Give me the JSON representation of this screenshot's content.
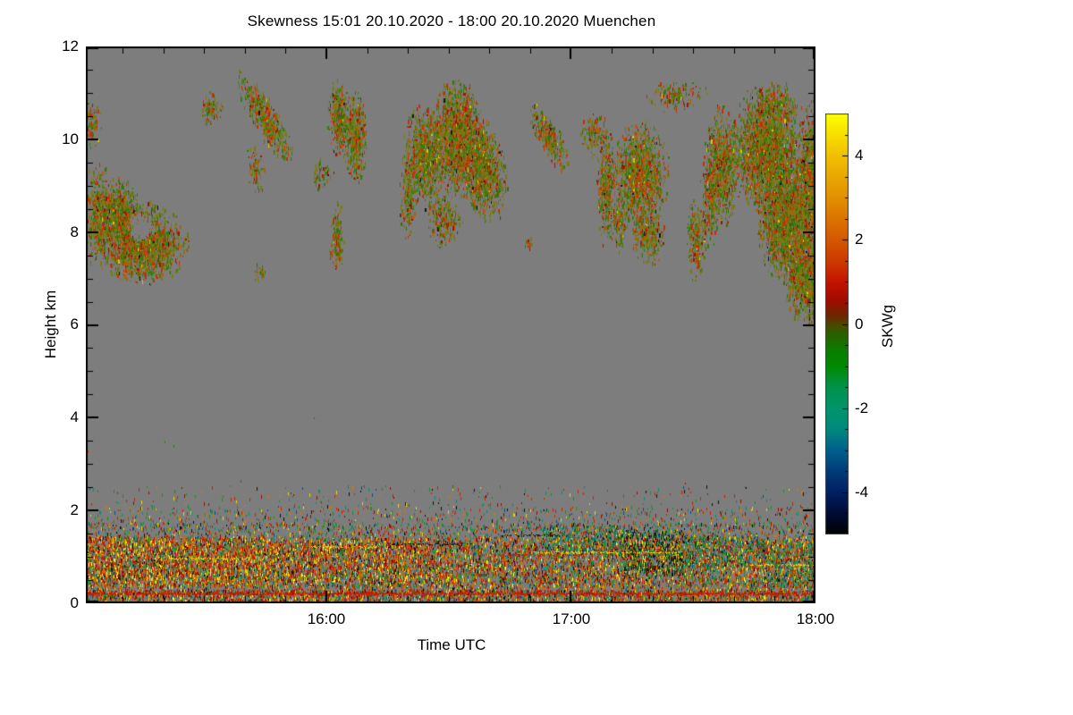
{
  "title": "Skewness   15:01 20.10.2020 - 18:00 20.10.2020 Muenchen",
  "chart_data": {
    "type": "heatmap",
    "title": "Skewness   15:01 20.10.2020 - 18:00 20.10.2020 Muenchen",
    "variable": "Skewness",
    "station": "Muenchen",
    "time_start": "15:01 20.10.2020",
    "time_end": "18:00 20.10.2020",
    "xlabel": "Time UTC",
    "ylabel": "Height km",
    "x_total_minutes": 179,
    "x_tick_labels": [
      "16:00",
      "17:00",
      "18:00"
    ],
    "x_major_minutes": [
      59,
      119,
      179
    ],
    "x_minor_step_min": 10,
    "y_max_km": 12,
    "y_tick_labels": [
      "12",
      "10",
      "8",
      "6",
      "4",
      "2",
      "0"
    ],
    "y_major_km": [
      0,
      2,
      4,
      6,
      8,
      10,
      12
    ],
    "y_minor_step_km": 0.5,
    "background_no_data_color": "#7D7D7D",
    "frame_color": "#000000",
    "colorbar": {
      "label": "SKWg",
      "min": -5,
      "max": 5,
      "tick_labels": [
        "4",
        "2",
        "0",
        "-2",
        "-4"
      ],
      "tick_values": [
        4,
        2,
        0,
        -2,
        -4
      ],
      "minor_step": 0.5,
      "gradient_stops": [
        [
          0.0,
          "#FFFF00"
        ],
        [
          0.1,
          "#F0C000"
        ],
        [
          0.2,
          "#E39000"
        ],
        [
          0.3,
          "#D55800"
        ],
        [
          0.36,
          "#CC3300"
        ],
        [
          0.4,
          "#C41400"
        ],
        [
          0.44,
          "#A50A00"
        ],
        [
          0.48,
          "#6E2600"
        ],
        [
          0.5,
          "#4F4500"
        ],
        [
          0.52,
          "#2F5C00"
        ],
        [
          0.56,
          "#0C7C00"
        ],
        [
          0.6,
          "#008A00"
        ],
        [
          0.65,
          "#00924A"
        ],
        [
          0.7,
          "#00966B"
        ],
        [
          0.75,
          "#00897E"
        ],
        [
          0.8,
          "#00608C"
        ],
        [
          0.85,
          "#003C78"
        ],
        [
          0.9,
          "#001F62"
        ],
        [
          0.95,
          "#000C35"
        ],
        [
          1.0,
          "#000000"
        ]
      ]
    },
    "palettes": {
      "cloud": [
        [
          "#7A7A14",
          0.3
        ],
        [
          "#5F7A10",
          0.14
        ],
        [
          "#2E7D12",
          0.14
        ],
        [
          "#C03208",
          0.16
        ],
        [
          "#B55B0A",
          0.1
        ],
        [
          "#8C1E04",
          0.06
        ],
        [
          "#3E6B0A",
          0.08
        ],
        [
          "#D8C800",
          0.01
        ],
        [
          "#151515",
          0.01
        ]
      ],
      "bl_dense": [
        [
          "#C21E00",
          0.2
        ],
        [
          "#D96A00",
          0.16
        ],
        [
          "#E6C800",
          0.1
        ],
        [
          "#FFFF30",
          0.04
        ],
        [
          "#7E7A0E",
          0.08
        ],
        [
          "#1E8C28",
          0.14
        ],
        [
          "#0E8C6E",
          0.08
        ],
        [
          "#0F4E7E",
          0.04
        ],
        [
          "#101010",
          0.07
        ],
        [
          "#8C1200",
          0.09
        ]
      ],
      "bl_sparse": [
        [
          "#C22A00",
          0.2
        ],
        [
          "#D97800",
          0.12
        ],
        [
          "#E8D800",
          0.08
        ],
        [
          "#1E8C28",
          0.22
        ],
        [
          "#0E8C6E",
          0.12
        ],
        [
          "#0F4E7E",
          0.06
        ],
        [
          "#101010",
          0.09
        ],
        [
          "#8C1200",
          0.11
        ]
      ],
      "bl_green": [
        [
          "#1E8C28",
          0.28
        ],
        [
          "#0E8C6E",
          0.2
        ],
        [
          "#0F5E3E",
          0.12
        ],
        [
          "#C22A00",
          0.1
        ],
        [
          "#D97800",
          0.08
        ],
        [
          "#E8D800",
          0.06
        ],
        [
          "#101010",
          0.08
        ],
        [
          "#0F4E7E",
          0.08
        ]
      ],
      "bl_dark": [
        [
          "#0B2E10",
          0.2
        ],
        [
          "#101010",
          0.2
        ],
        [
          "#14502A",
          0.15
        ],
        [
          "#0E8C6E",
          0.1
        ],
        [
          "#1E8C28",
          0.12
        ],
        [
          "#C22A00",
          0.1
        ],
        [
          "#D97800",
          0.06
        ],
        [
          "#E8D800",
          0.07
        ]
      ],
      "bl_warm": [
        [
          "#C21E00",
          0.3
        ],
        [
          "#D96A00",
          0.25
        ],
        [
          "#E8D800",
          0.15
        ],
        [
          "#FFFF30",
          0.05
        ],
        [
          "#1E8C28",
          0.1
        ],
        [
          "#101010",
          0.05
        ],
        [
          "#8C1200",
          0.1
        ]
      ],
      "bl_red": [
        [
          "#C21E00",
          0.45
        ],
        [
          "#8C1200",
          0.15
        ],
        [
          "#D96A00",
          0.12
        ],
        [
          "#E8D800",
          0.06
        ],
        [
          "#1E8C28",
          0.08
        ],
        [
          "#101010",
          0.06
        ],
        [
          "#0E8C6E",
          0.04
        ],
        [
          "#7E7A0E",
          0.04
        ]
      ]
    },
    "clouds": [
      {
        "t": 1.5,
        "h": 10.3,
        "rt": 2.5,
        "rh": 0.5,
        "d": 0.22
      },
      {
        "t": 3,
        "h": 8.3,
        "rt": 3.5,
        "rh": 1.05,
        "d": 0.4
      },
      {
        "t": 14,
        "h": 7.7,
        "rt": 10,
        "rh": 0.8,
        "d": 0.75
      },
      {
        "t": 8,
        "h": 8.35,
        "rt": 5,
        "rh": 0.7,
        "d": 0.6
      },
      {
        "t": 13.5,
        "h": 8.05,
        "rt": 3,
        "rh": 0.28,
        "d": 1.3,
        "erase": true
      },
      {
        "t": 30.5,
        "h": 10.6,
        "rt": 2.8,
        "rh": 0.35,
        "d": 0.28
      },
      {
        "t": 44,
        "h": 10.4,
        "rt": 6.5,
        "rh": 0.5,
        "d": 0.5,
        "s": -0.12
      },
      {
        "t": 41.5,
        "h": 9.3,
        "rt": 2,
        "rh": 0.5,
        "d": 0.25,
        "s": -0.1
      },
      {
        "t": 42.5,
        "h": 7.05,
        "rt": 1.5,
        "rh": 0.2,
        "d": 0.35
      },
      {
        "t": 57.5,
        "h": 9.2,
        "rt": 3,
        "rh": 0.3,
        "d": 0.22
      },
      {
        "t": 62,
        "h": 10.4,
        "rt": 2.6,
        "rh": 0.8,
        "d": 0.55
      },
      {
        "t": 66,
        "h": 10.0,
        "rt": 2.8,
        "rh": 0.95,
        "d": 0.5
      },
      {
        "t": 61.5,
        "h": 7.8,
        "rt": 1.8,
        "rh": 0.75,
        "d": 0.4
      },
      {
        "t": 83,
        "h": 9.6,
        "rt": 5,
        "rh": 1.05,
        "d": 0.55
      },
      {
        "t": 91,
        "h": 10.0,
        "rt": 6,
        "rh": 1.15,
        "d": 0.7
      },
      {
        "t": 97,
        "h": 9.3,
        "rt": 6,
        "rh": 1.0,
        "d": 0.65,
        "s": -0.05
      },
      {
        "t": 88,
        "h": 8.2,
        "rt": 4,
        "rh": 0.55,
        "d": 0.32
      },
      {
        "t": 79,
        "h": 8.7,
        "rt": 2.2,
        "rh": 0.9,
        "d": 0.28
      },
      {
        "t": 108.5,
        "h": 7.7,
        "rt": 0.9,
        "rh": 0.16,
        "d": 0.45
      },
      {
        "t": 113.5,
        "h": 10.0,
        "rt": 4.5,
        "rh": 0.45,
        "d": 0.45,
        "s": -0.11
      },
      {
        "t": 124.5,
        "h": 10.05,
        "rt": 3,
        "rh": 0.45,
        "d": 0.28
      },
      {
        "t": 127.5,
        "h": 9.0,
        "rt": 2.3,
        "rh": 1.25,
        "d": 0.45
      },
      {
        "t": 136,
        "h": 9.2,
        "rt": 6.5,
        "rh": 1.05,
        "d": 0.6
      },
      {
        "t": 138,
        "h": 7.9,
        "rt": 4,
        "rh": 0.6,
        "d": 0.42
      },
      {
        "t": 131,
        "h": 8.15,
        "rt": 2,
        "rh": 0.6,
        "d": 0.38
      },
      {
        "t": 145,
        "h": 10.9,
        "rt": 7,
        "rh": 0.35,
        "d": 0.18
      },
      {
        "t": 149.5,
        "h": 7.8,
        "rt": 2.2,
        "rh": 0.85,
        "d": 0.35
      },
      {
        "t": 156,
        "h": 9.4,
        "rt": 4,
        "rh": 1.2,
        "d": 0.5
      },
      {
        "t": 167,
        "h": 9.7,
        "rt": 8.5,
        "rh": 1.25,
        "d": 0.75
      },
      {
        "t": 172,
        "h": 8.2,
        "rt": 7,
        "rh": 1.2,
        "d": 0.75
      },
      {
        "t": 176.5,
        "h": 7.0,
        "rt": 5,
        "rh": 0.95,
        "d": 0.7
      },
      {
        "t": 178,
        "h": 9.0,
        "rt": 3.5,
        "rh": 1.6,
        "d": 0.7
      },
      {
        "t": 168,
        "h": 10.7,
        "rt": 7,
        "rh": 0.45,
        "d": 0.25
      },
      {
        "t": 153,
        "h": 8.6,
        "rt": 2.5,
        "rh": 1.0,
        "d": 0.3
      }
    ],
    "bl_bands": [
      {
        "h0": 2.1,
        "h1": 2.55,
        "d": 0.035,
        "p": "bl_sparse"
      },
      {
        "h0": 1.75,
        "h1": 2.1,
        "d": 0.1,
        "p": "bl_sparse"
      },
      {
        "h0": 1.45,
        "h1": 1.75,
        "d": 0.28,
        "p": "bl_sparse"
      },
      {
        "h0": 1.3,
        "h1": 1.45,
        "d": 0.55,
        "p": "bl_dense"
      },
      {
        "h0": 0.38,
        "h1": 1.3,
        "d": 0.85,
        "p": "bl_dense"
      },
      {
        "h0": 0.3,
        "h1": 0.38,
        "d": 0.4,
        "p": "bl_dense"
      },
      {
        "h0": 0.18,
        "h1": 0.3,
        "d": 0.95,
        "p": "bl_red"
      },
      {
        "h0": 0.0,
        "h1": 0.18,
        "d": 0.8,
        "p": "bl_dense"
      }
    ],
    "bl_patches": [
      {
        "t0": 0,
        "t1": 45,
        "h0": 0.4,
        "h1": 1.45,
        "d": 0.45,
        "p": "bl_warm"
      },
      {
        "t0": 45,
        "t1": 90,
        "h0": 0.5,
        "h1": 1.35,
        "d": 0.3,
        "p": "bl_warm"
      },
      {
        "t0": 112,
        "t1": 132,
        "h0": 1.05,
        "h1": 1.7,
        "d": 0.5,
        "p": "bl_green"
      },
      {
        "t0": 132,
        "t1": 147,
        "h0": 0.65,
        "h1": 1.6,
        "d": 0.6,
        "p": "bl_dark"
      },
      {
        "t0": 147,
        "t1": 166,
        "h0": 0.8,
        "h1": 1.5,
        "d": 0.45,
        "p": "bl_green"
      },
      {
        "t0": 166,
        "t1": 179,
        "h0": 0.35,
        "h1": 1.35,
        "d": 0.3,
        "p": "bl_green"
      }
    ],
    "bl_streaks": [
      {
        "t0": 55,
        "t1": 72,
        "h": 1.23,
        "c": "#E8D800"
      },
      {
        "t0": 110,
        "t1": 146,
        "h": 1.12,
        "c": "#E8D800"
      },
      {
        "t0": 163,
        "t1": 177.5,
        "h": 0.85,
        "c": "#F0E000"
      },
      {
        "t0": 20,
        "t1": 40,
        "h": 0.98,
        "c": "#E8D800"
      },
      {
        "t0": 75,
        "t1": 95,
        "h": 1.3,
        "c": "#151515"
      },
      {
        "t0": 102,
        "t1": 118,
        "h": 1.48,
        "c": "#151515"
      },
      {
        "t0": 100,
        "t1": 122,
        "h": 1.06,
        "c": "#C22A00"
      },
      {
        "t0": 163,
        "t1": 177,
        "h": 1.12,
        "c": "#C22A00"
      },
      {
        "t0": 0,
        "t1": 179,
        "h": 0.23,
        "c": "#C21E00",
        "solid": 0.8,
        "th": 2
      }
    ],
    "specks": [
      [
        56,
        4.0
      ],
      [
        19.3,
        3.5
      ],
      [
        21.5,
        3.4
      ],
      [
        0.5,
        3.3
      ],
      [
        49,
        2.5
      ],
      [
        38,
        2.65
      ],
      [
        147,
        2.6
      ],
      [
        90,
        2.55
      ]
    ]
  }
}
